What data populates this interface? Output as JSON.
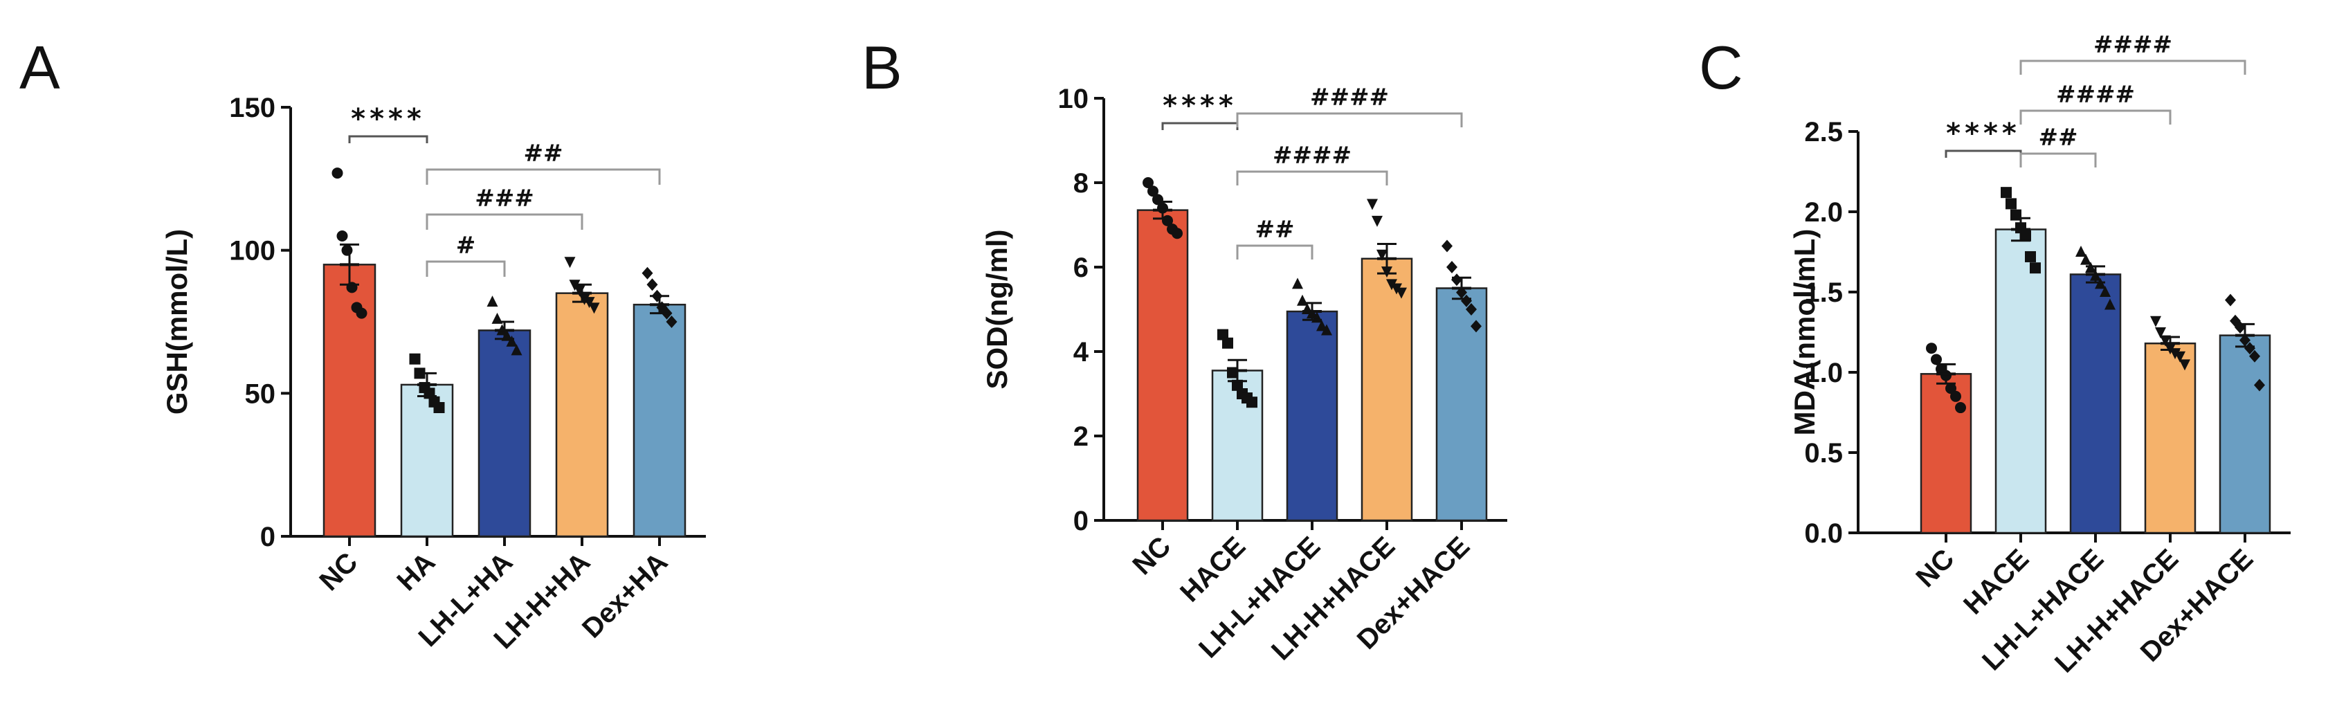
{
  "chart_data": [
    {
      "type": "bar",
      "panel": "A",
      "ylabel": "GSH(mmol/L)",
      "ylim": [
        0,
        150
      ],
      "yticks": [
        0,
        50,
        100,
        150
      ],
      "categories": [
        "NC",
        "HA",
        "LH-L+HA",
        "LH-H+HA",
        "Dex+HA"
      ],
      "colors": [
        "#e2553a",
        "#c9e6ef",
        "#2e4a99",
        "#f5b26b",
        "#6a9ec2"
      ],
      "values": [
        95,
        53,
        72,
        85,
        81
      ],
      "errors": [
        7,
        4,
        3,
        3,
        3
      ],
      "points": [
        [
          127,
          105,
          100,
          87,
          80,
          78
        ],
        [
          62,
          57,
          52,
          50,
          47,
          45
        ],
        [
          82,
          76,
          72,
          70,
          68,
          65
        ],
        [
          96,
          88,
          86,
          83,
          82,
          80
        ],
        [
          92,
          88,
          84,
          80,
          78,
          75
        ]
      ],
      "markers": [
        "circle",
        "square",
        "triangle",
        "tri-down",
        "diamond"
      ],
      "star_label": "****",
      "significance": [
        {
          "from": 0,
          "to": 1,
          "label": "****"
        },
        {
          "from": 1,
          "to": 2,
          "label": "#"
        },
        {
          "from": 1,
          "to": 3,
          "label": "###"
        },
        {
          "from": 1,
          "to": 4,
          "label": "##"
        }
      ]
    },
    {
      "type": "bar",
      "panel": "B",
      "ylabel": "SOD(ng/ml)",
      "ylim": [
        0,
        10
      ],
      "yticks": [
        0,
        2,
        4,
        6,
        8,
        10
      ],
      "categories": [
        "NC",
        "HACE",
        "LH-L+HACE",
        "LH-H+HACE",
        "Dex+HACE"
      ],
      "colors": [
        "#e2553a",
        "#c9e6ef",
        "#2e4a99",
        "#f5b26b",
        "#6a9ec2"
      ],
      "values": [
        7.35,
        3.55,
        4.95,
        6.2,
        5.5
      ],
      "errors": [
        0.2,
        0.25,
        0.2,
        0.35,
        0.25
      ],
      "points": [
        [
          8.0,
          7.8,
          7.6,
          7.4,
          7.1,
          6.9,
          6.8
        ],
        [
          4.4,
          4.2,
          3.5,
          3.2,
          3.0,
          2.9,
          2.8
        ],
        [
          5.6,
          5.2,
          5.0,
          4.9,
          4.8,
          4.6,
          4.5
        ],
        [
          7.5,
          7.1,
          6.3,
          5.9,
          5.6,
          5.5,
          5.4
        ],
        [
          6.5,
          6.0,
          5.7,
          5.4,
          5.2,
          5.0,
          4.6
        ]
      ],
      "markers": [
        "circle",
        "square",
        "triangle",
        "tri-down",
        "diamond"
      ],
      "star_label": "****",
      "significance": [
        {
          "from": 0,
          "to": 1,
          "label": "****"
        },
        {
          "from": 1,
          "to": 2,
          "label": "##"
        },
        {
          "from": 1,
          "to": 3,
          "label": "####"
        },
        {
          "from": 1,
          "to": 4,
          "label": "####"
        }
      ]
    },
    {
      "type": "bar",
      "panel": "C",
      "ylabel": "MDA(nmol/mL)",
      "ylim": [
        0,
        2.5
      ],
      "yticks": [
        "0.0",
        "0.5",
        "1.0",
        "1.5",
        "2.0",
        "2.5"
      ],
      "categories": [
        "NC",
        "HACE",
        "LH-L+HACE",
        "LH-H+HACE",
        "Dex+HACE"
      ],
      "colors": [
        "#e2553a",
        "#c9e6ef",
        "#2e4a99",
        "#f5b26b",
        "#6a9ec2"
      ],
      "values": [
        0.99,
        1.89,
        1.61,
        1.18,
        1.23
      ],
      "errors": [
        0.06,
        0.07,
        0.05,
        0.04,
        0.07
      ],
      "points": [
        [
          1.15,
          1.08,
          1.02,
          0.98,
          0.9,
          0.85,
          0.78
        ],
        [
          2.12,
          2.05,
          1.98,
          1.9,
          1.85,
          1.72,
          1.65
        ],
        [
          1.75,
          1.7,
          1.65,
          1.6,
          1.55,
          1.5,
          1.42
        ],
        [
          1.32,
          1.25,
          1.2,
          1.15,
          1.12,
          1.1,
          1.05
        ],
        [
          1.45,
          1.32,
          1.28,
          1.2,
          1.15,
          1.1,
          0.92
        ]
      ],
      "markers": [
        "circle",
        "square",
        "triangle",
        "tri-down",
        "diamond"
      ],
      "star_label": "****",
      "significance": [
        {
          "from": 0,
          "to": 1,
          "label": "****"
        },
        {
          "from": 1,
          "to": 2,
          "label": "##"
        },
        {
          "from": 1,
          "to": 3,
          "label": "####"
        },
        {
          "from": 1,
          "to": 4,
          "label": "####"
        }
      ]
    }
  ]
}
